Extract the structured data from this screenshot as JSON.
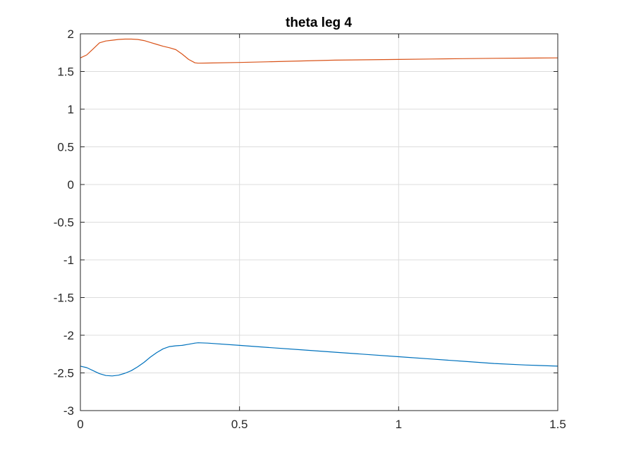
{
  "colors": {
    "background": "#ffffff",
    "axes": "#262626",
    "grid": "#dcdcdc",
    "series_1": "#0072BD",
    "series_2": "#D95319"
  },
  "chart_data": {
    "type": "line",
    "title": "theta leg 4",
    "xlabel": "",
    "ylabel": "",
    "xlim": [
      0,
      1.5
    ],
    "ylim": [
      -3,
      2
    ],
    "grid": true,
    "x_ticks": [
      "0",
      "0.5",
      "1",
      "1.5"
    ],
    "y_ticks": [
      "2",
      "1.5",
      "1",
      "0.5",
      "0",
      "-0.5",
      "-1",
      "-1.5",
      "-2",
      "-2.5",
      "-3"
    ],
    "series": [
      {
        "color": "#0072BD",
        "x": [
          0,
          0.02,
          0.04,
          0.06,
          0.08,
          0.1,
          0.12,
          0.14,
          0.16,
          0.18,
          0.2,
          0.22,
          0.24,
          0.26,
          0.28,
          0.3,
          0.32,
          0.34,
          0.36,
          0.37,
          0.4,
          0.5,
          0.6,
          0.7,
          0.8,
          0.9,
          1.0,
          1.1,
          1.2,
          1.3,
          1.4,
          1.5
        ],
        "y": [
          -2.41,
          -2.43,
          -2.47,
          -2.51,
          -2.535,
          -2.54,
          -2.53,
          -2.505,
          -2.47,
          -2.42,
          -2.36,
          -2.29,
          -2.23,
          -2.18,
          -2.15,
          -2.14,
          -2.135,
          -2.12,
          -2.105,
          -2.1,
          -2.105,
          -2.135,
          -2.165,
          -2.195,
          -2.225,
          -2.255,
          -2.285,
          -2.315,
          -2.345,
          -2.375,
          -2.395,
          -2.41
        ]
      },
      {
        "color": "#D95319",
        "x": [
          0,
          0.02,
          0.04,
          0.06,
          0.08,
          0.1,
          0.12,
          0.14,
          0.16,
          0.18,
          0.2,
          0.22,
          0.24,
          0.26,
          0.28,
          0.3,
          0.32,
          0.34,
          0.36,
          0.37,
          0.4,
          0.5,
          0.6,
          0.7,
          0.8,
          0.9,
          1.0,
          1.1,
          1.2,
          1.3,
          1.4,
          1.5
        ],
        "y": [
          1.68,
          1.72,
          1.8,
          1.88,
          1.905,
          1.915,
          1.925,
          1.93,
          1.93,
          1.925,
          1.91,
          1.885,
          1.86,
          1.835,
          1.815,
          1.79,
          1.73,
          1.66,
          1.615,
          1.61,
          1.612,
          1.62,
          1.63,
          1.64,
          1.65,
          1.655,
          1.66,
          1.665,
          1.67,
          1.675,
          1.678,
          1.68
        ]
      }
    ]
  }
}
